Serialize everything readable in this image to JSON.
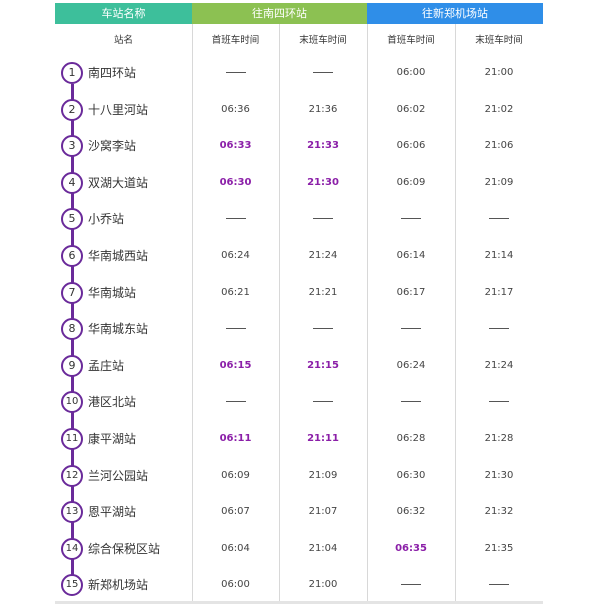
{
  "header": {
    "station_col": "车站名称",
    "dir1": "往南四环站",
    "dir2": "往新郑机场站",
    "colors": {
      "station": "#3dbf9b",
      "dir1": "#8cc152",
      "dir2": "#2f8ee8",
      "line": "#6a2a9a",
      "highlight": "#8b1fa8"
    }
  },
  "subheader": [
    "站名",
    "首班车时间",
    "末班车时间",
    "首班车时间",
    "末班车时间"
  ],
  "stations": [
    {
      "num": "1",
      "name": "南四环站",
      "times": [
        {
          "v": "——"
        },
        {
          "v": "——"
        },
        {
          "v": "06:00"
        },
        {
          "v": "21:00"
        }
      ]
    },
    {
      "num": "2",
      "name": "十八里河站",
      "times": [
        {
          "v": "06:36"
        },
        {
          "v": "21:36"
        },
        {
          "v": "06:02"
        },
        {
          "v": "21:02"
        }
      ]
    },
    {
      "num": "3",
      "name": "沙窝李站",
      "times": [
        {
          "v": "06:33",
          "hl": true
        },
        {
          "v": "21:33",
          "hl": true
        },
        {
          "v": "06:06"
        },
        {
          "v": "21:06"
        }
      ]
    },
    {
      "num": "4",
      "name": "双湖大道站",
      "times": [
        {
          "v": "06:30",
          "hl": true
        },
        {
          "v": "21:30",
          "hl": true
        },
        {
          "v": "06:09"
        },
        {
          "v": "21:09"
        }
      ]
    },
    {
      "num": "5",
      "name": "小乔站",
      "times": [
        {
          "v": "——"
        },
        {
          "v": "——"
        },
        {
          "v": "——"
        },
        {
          "v": "——"
        }
      ]
    },
    {
      "num": "6",
      "name": "华南城西站",
      "times": [
        {
          "v": "06:24"
        },
        {
          "v": "21:24"
        },
        {
          "v": "06:14"
        },
        {
          "v": "21:14"
        }
      ]
    },
    {
      "num": "7",
      "name": "华南城站",
      "times": [
        {
          "v": "06:21"
        },
        {
          "v": "21:21"
        },
        {
          "v": "06:17"
        },
        {
          "v": "21:17"
        }
      ]
    },
    {
      "num": "8",
      "name": "华南城东站",
      "times": [
        {
          "v": "——"
        },
        {
          "v": "——"
        },
        {
          "v": "——"
        },
        {
          "v": "——"
        }
      ]
    },
    {
      "num": "9",
      "name": "孟庄站",
      "times": [
        {
          "v": "06:15",
          "hl": true
        },
        {
          "v": "21:15",
          "hl": true
        },
        {
          "v": "06:24"
        },
        {
          "v": "21:24"
        }
      ]
    },
    {
      "num": "10",
      "name": "港区北站",
      "times": [
        {
          "v": "——"
        },
        {
          "v": "——"
        },
        {
          "v": "——"
        },
        {
          "v": "——"
        }
      ]
    },
    {
      "num": "11",
      "name": "康平湖站",
      "times": [
        {
          "v": "06:11",
          "hl": true
        },
        {
          "v": "21:11",
          "hl": true
        },
        {
          "v": "06:28"
        },
        {
          "v": "21:28"
        }
      ]
    },
    {
      "num": "12",
      "name": "兰河公园站",
      "times": [
        {
          "v": "06:09"
        },
        {
          "v": "21:09"
        },
        {
          "v": "06:30"
        },
        {
          "v": "21:30"
        }
      ]
    },
    {
      "num": "13",
      "name": "恩平湖站",
      "times": [
        {
          "v": "06:07"
        },
        {
          "v": "21:07"
        },
        {
          "v": "06:32"
        },
        {
          "v": "21:32"
        }
      ]
    },
    {
      "num": "14",
      "name": "综合保税区站",
      "times": [
        {
          "v": "06:04"
        },
        {
          "v": "21:04"
        },
        {
          "v": "06:35",
          "hl": true
        },
        {
          "v": "21:35"
        }
      ]
    },
    {
      "num": "15",
      "name": "新郑机场站",
      "times": [
        {
          "v": "06:00"
        },
        {
          "v": "21:00"
        },
        {
          "v": "——"
        },
        {
          "v": "——"
        }
      ]
    }
  ]
}
